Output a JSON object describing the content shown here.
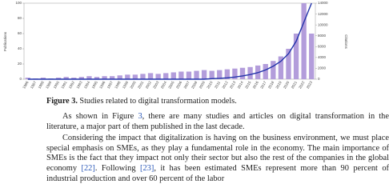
{
  "chart_data": {
    "type": "bar",
    "ylabel": "Publications",
    "y2label": "Citations",
    "categories": [
      "1986",
      "1987",
      "1988",
      "1989",
      "1990",
      "1991",
      "1992",
      "1993",
      "1994",
      "1995",
      "1996",
      "1997",
      "1998",
      "1999",
      "2000",
      "2001",
      "2002",
      "2003",
      "2004",
      "2005",
      "2006",
      "2007",
      "2008",
      "2009",
      "2010",
      "2011",
      "2012",
      "2013",
      "2014",
      "2015",
      "2016",
      "2017",
      "2018",
      "2019",
      "2020",
      "2021",
      "2022",
      "2023"
    ],
    "series": [
      {
        "color": "#b39ddb",
        "values": [
          2,
          1,
          2,
          1,
          2,
          3,
          2,
          3,
          4,
          3,
          4,
          4,
          5,
          6,
          6,
          7,
          8,
          7,
          8,
          9,
          10,
          10,
          11,
          12,
          11,
          12,
          13,
          14,
          15,
          16,
          18,
          20,
          24,
          30,
          40,
          60,
          100,
          60
        ]
      },
      {
        "color": "#2233aa",
        "axis": "y2",
        "values": [
          0,
          0,
          0,
          0,
          0,
          0,
          0,
          0,
          0,
          0,
          0,
          0,
          0,
          0,
          0,
          0,
          0,
          0,
          0,
          0,
          0,
          0,
          0,
          0,
          100,
          150,
          250,
          400,
          600,
          850,
          1200,
          1700,
          2400,
          3300,
          4700,
          7000,
          10500,
          14000
        ]
      }
    ],
    "ylim": [
      0,
      100
    ],
    "yticks": [
      0,
      20,
      40,
      60,
      80,
      100
    ],
    "y2lim": [
      0,
      14000
    ],
    "y2ticks": [
      0,
      2000,
      4000,
      6000,
      8000,
      10000,
      12000,
      14000
    ]
  },
  "caption": {
    "label": "Figure 3.",
    "text": "Studies related to digital transformation models."
  },
  "paragraphs": [
    [
      "As shown in Figure ",
      "3",
      ", there are many studies and articles on digital transformation in the literature, a major part of them published in the last decade."
    ],
    [
      "Considering the impact that digitalization is having on the business environment, we must place special emphasis on SMEs, as they play a fundamental role in the economy. The main importance of SMEs is the fact that they impact not only their sector but also the rest of the companies in the global economy ",
      "[22]",
      ". Following ",
      "[23]",
      ", it has been estimated SMEs represent more than 90 percent of industrial production and over 60 percent of the labor"
    ]
  ]
}
